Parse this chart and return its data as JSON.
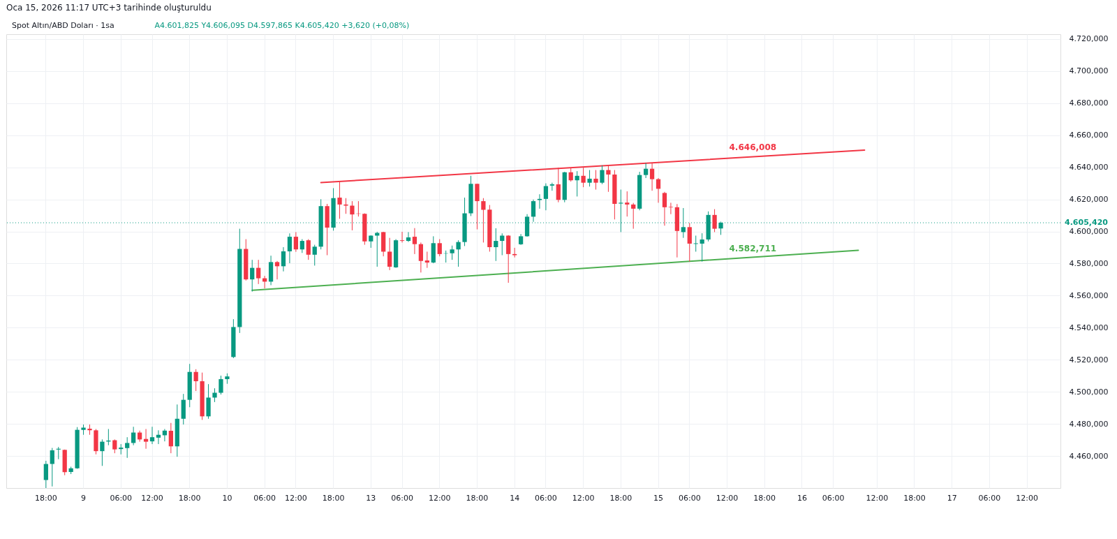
{
  "chart_data": {
    "type": "candlestick",
    "title": "Spot Altın/ABD Doları · 1sa",
    "subtitle": "A4.601,825 Y4.606,095 D4.597,865 K4.605,420 +3,620 (+0,08%)",
    "annotations": [
      "Oca 15, 2026 11:17 UTC+3 tarihinde oluşturuldu",
      {
        "text": "4.646,008",
        "y": 4646.008
      },
      {
        "text": "4.582,711",
        "y": 4582.711
      }
    ],
    "categories": [
      null,
      null,
      null,
      null,
      null,
      null,
      "18:00",
      null,
      null,
      null,
      null,
      null,
      "9",
      null,
      null,
      null,
      null,
      null,
      "06:00",
      null,
      null,
      null,
      null,
      "12:00",
      null,
      null,
      null,
      null,
      null,
      "18:00",
      null,
      null,
      null,
      null,
      null,
      "10",
      null,
      null,
      null,
      null,
      null,
      "06:00",
      null,
      null,
      null,
      null,
      "12:00",
      null,
      null,
      null,
      null,
      null,
      "18:00",
      null,
      null,
      null,
      null,
      null,
      "13",
      null,
      null,
      null,
      null,
      "06:00",
      null,
      null,
      null,
      null,
      null,
      "12:00",
      null,
      null,
      null,
      null,
      null,
      "18:00",
      null,
      null,
      null,
      null,
      null,
      "14",
      null,
      null,
      null,
      null,
      "06:00",
      null,
      null,
      null,
      null,
      null,
      "12:00",
      null,
      null,
      null,
      null,
      null,
      "18:00",
      null,
      null,
      null,
      null,
      null,
      "15",
      null,
      null,
      null,
      null,
      "06:00",
      null,
      null,
      null,
      null,
      null,
      "12:00",
      null,
      null,
      null,
      null,
      null,
      "18:00",
      null,
      null,
      null,
      null,
      null,
      "16",
      null,
      null,
      null,
      null,
      "06:00",
      null,
      null,
      null,
      null,
      null,
      null,
      "12:00",
      null,
      null,
      null,
      null,
      null,
      "18:00",
      null,
      null,
      null,
      null,
      null,
      "17",
      null,
      null,
      null,
      null,
      null,
      "06:00",
      null,
      null,
      null,
      null,
      null,
      "12:00",
      null,
      null,
      null,
      null,
      null
    ],
    "ohlc": [
      null,
      null,
      null,
      null,
      null,
      null,
      [
        4445,
        4457,
        4440,
        4455
      ],
      [
        4455,
        4465,
        4441,
        4463.5
      ],
      [
        4464,
        4465.6,
        4458,
        4464.5
      ],
      [
        4463.8,
        4464,
        4448,
        4449.9
      ],
      [
        4450,
        4453.3,
        4448.7,
        4452.3
      ],
      [
        4452.3,
        4478,
        4452,
        4476.3
      ],
      [
        4476.3,
        4479.6,
        4473.2,
        4477.7
      ],
      [
        4477,
        4479.6,
        4473.2,
        4476
      ],
      [
        4476,
        4476.8,
        4461,
        4463
      ],
      [
        4463,
        4470.3,
        4453.8,
        4468.9
      ],
      [
        4469,
        4476.8,
        4466.7,
        4469.6
      ],
      [
        4469.8,
        4470.3,
        4461.7,
        4464.1
      ],
      [
        4464.3,
        4467.4,
        4461,
        4465.2
      ],
      [
        4464.9,
        4471.7,
        4458.8,
        4468.1
      ],
      [
        4468.1,
        4478.2,
        4466.7,
        4474.6
      ],
      [
        4474.6,
        4475.8,
        4468.9,
        4470.3
      ],
      [
        4470.6,
        4476.8,
        4464.5,
        4468.9
      ],
      [
        4469.1,
        4478.2,
        4467.4,
        4471.7
      ],
      [
        4471.4,
        4476,
        4467.4,
        4473.2
      ],
      [
        4472.9,
        4476.8,
        4469.1,
        4475.8
      ],
      [
        4475.7,
        4480.6,
        4461.7,
        4466
      ],
      [
        4466,
        4492.1,
        4459.5,
        4483.2
      ],
      [
        4483.2,
        4498.7,
        4479.6,
        4495
      ],
      [
        4495,
        4517.4,
        4490.4,
        4512.4
      ],
      [
        4512.4,
        4514.1,
        4500.5,
        4506.6
      ],
      [
        4506.6,
        4512,
        4482.5,
        4484.7
      ],
      [
        4484.7,
        4504.8,
        4483.2,
        4496.4
      ],
      [
        4496.4,
        4502.2,
        4493.6,
        4499.4
      ],
      [
        4499.4,
        4510.1,
        4498.3,
        4507.9
      ],
      [
        4507.9,
        4511.5,
        4505,
        4509.6
      ],
      [
        4521.7,
        4545.3,
        4521,
        4540.4
      ],
      [
        4540.4,
        4601.7,
        4536.7,
        4589.1
      ],
      [
        4589.1,
        4595.2,
        4569.4,
        4570.1
      ],
      [
        4570.1,
        4582.3,
        4562.5,
        4577.3
      ],
      [
        4577.3,
        4582.3,
        4567.2,
        4570.8
      ],
      [
        4570.8,
        4572.3,
        4564.5,
        4568.7
      ],
      [
        4568.7,
        4584.9,
        4566.5,
        4580.9
      ],
      [
        4580.9,
        4581.6,
        4570.1,
        4578.3
      ],
      [
        4578.3,
        4590.2,
        4575.1,
        4587.6
      ],
      [
        4587.6,
        4598.8,
        4580.2,
        4596.7
      ],
      [
        4596.7,
        4599.6,
        4587.3,
        4588.8
      ],
      [
        4588.8,
        4595.2,
        4586.6,
        4594.1
      ],
      [
        4594.5,
        4595.2,
        4582.3,
        4585.5
      ],
      [
        4585.5,
        4591.7,
        4578.7,
        4590.5
      ],
      [
        4590.5,
        4620.1,
        4588.8,
        4615.8
      ],
      [
        4615.8,
        4617.2,
        4585.2,
        4602.4
      ],
      [
        4602.4,
        4627,
        4600.5,
        4620.8
      ],
      [
        4621.1,
        4631,
        4607.9,
        4616.8
      ],
      [
        4616.8,
        4620.8,
        4611,
        4616.1
      ],
      [
        4616.1,
        4618.9,
        4600.7,
        4610.6
      ],
      [
        4611.2,
        4618.9,
        4609.3,
        4611
      ],
      [
        4611,
        4611.3,
        4591.7,
        4593.8
      ],
      [
        4593.8,
        4597.6,
        4589.8,
        4597.4
      ],
      [
        4597.4,
        4599.8,
        4578,
        4599.1
      ],
      [
        4599.6,
        4599.8,
        4584.5,
        4587.4
      ],
      [
        4587.4,
        4596,
        4575.9,
        4578
      ],
      [
        4577.6,
        4595.2,
        4577.3,
        4594.5
      ],
      [
        4594.5,
        4599.8,
        4593.1,
        4594.1
      ],
      [
        4594.1,
        4599.6,
        4593.5,
        4596.3
      ],
      [
        4596.7,
        4602.1,
        4585.9,
        4592.1
      ],
      [
        4592.1,
        4593.1,
        4574.4,
        4581.6
      ],
      [
        4581.9,
        4587.4,
        4577.3,
        4580.6
      ],
      [
        4580.6,
        4597,
        4580.2,
        4592.7
      ],
      [
        4592.7,
        4595.2,
        4584.5,
        4585.9
      ],
      [
        4586.2,
        4588.1,
        4580.6,
        4586.4
      ],
      [
        4586.4,
        4591.2,
        4582.3,
        4588.8
      ],
      [
        4588.8,
        4594.5,
        4578,
        4593.4
      ],
      [
        4593.4,
        4621.1,
        4590.9,
        4611.3
      ],
      [
        4611.3,
        4634.7,
        4609.6,
        4629.7
      ],
      [
        4629.7,
        4629.7,
        4601.3,
        4618.9
      ],
      [
        4618.9,
        4620.8,
        4593.1,
        4613.5
      ],
      [
        4613.6,
        4616.5,
        4587.4,
        4590.2
      ],
      [
        4590.2,
        4602,
        4581.6,
        4594.1
      ],
      [
        4594.1,
        4598.8,
        4585.2,
        4597.4
      ],
      [
        4597.4,
        4597.7,
        4568,
        4585.9
      ],
      [
        4585.9,
        4589.8,
        4583.8,
        4585.2
      ],
      [
        4592,
        4598.4,
        4591.6,
        4597
      ],
      [
        4597,
        4610.8,
        4596.7,
        4609.2
      ],
      [
        4609.2,
        4619.9,
        4606,
        4618.9
      ],
      [
        4619.6,
        4623.2,
        4614.2,
        4620.3
      ],
      [
        4620.3,
        4630,
        4613.2,
        4628.3
      ],
      [
        4628.6,
        4630.4,
        4625.4,
        4629.4
      ],
      [
        4629.4,
        4639.8,
        4618.2,
        4619.7
      ],
      [
        4619.7,
        4637.2,
        4618.2,
        4636.9
      ],
      [
        4636.9,
        4639.8,
        4631.1,
        4631.9
      ],
      [
        4631.9,
        4637.6,
        4621.8,
        4634.7
      ],
      [
        4634.7,
        4639.8,
        4627.6,
        4630.4
      ],
      [
        4630.4,
        4638.3,
        4628,
        4632.9
      ],
      [
        4632.9,
        4638.3,
        4626.1,
        4630.4
      ],
      [
        4630.4,
        4641.2,
        4629.5,
        4638.3
      ],
      [
        4638.3,
        4641.2,
        4624.7,
        4635.5
      ],
      [
        4635.5,
        4638.3,
        4607.5,
        4617.2
      ],
      [
        4617.4,
        4626.1,
        4599.6,
        4617.9
      ],
      [
        4618,
        4625,
        4609.3,
        4616.8
      ],
      [
        4616.8,
        4617.8,
        4601.7,
        4614.2
      ],
      [
        4614.2,
        4637.2,
        4613.2,
        4635.2
      ],
      [
        4635.2,
        4642.6,
        4633.3,
        4639.1
      ],
      [
        4639.1,
        4642.6,
        4625.4,
        4632.6
      ],
      [
        4632.6,
        4633.3,
        4617.9,
        4626.6
      ],
      [
        4624,
        4624.7,
        4603.6,
        4615.1
      ],
      [
        4615.3,
        4617.9,
        4610.8,
        4615
      ],
      [
        4615.1,
        4617.1,
        4583.8,
        4600.3
      ],
      [
        4599.6,
        4614.6,
        4596,
        4602.7
      ],
      [
        4602.7,
        4605.3,
        4581.2,
        4592.4
      ],
      [
        4592.2,
        4597.4,
        4587.4,
        4592.6
      ],
      [
        4592.4,
        4598.9,
        4581.2,
        4595
      ],
      [
        4595,
        4612.5,
        4593.8,
        4610.3
      ],
      [
        4610.3,
        4613.9,
        4599.6,
        4601.7
      ],
      [
        4601.825,
        4606.095,
        4597.865,
        4605.42
      ],
      null,
      null,
      null,
      null,
      null,
      null,
      null,
      null,
      null,
      null,
      null,
      null,
      null,
      null,
      null,
      null,
      null,
      null,
      null,
      null,
      null,
      null,
      null,
      null,
      null,
      null,
      null,
      null,
      null,
      null,
      null,
      null,
      null,
      null,
      null,
      null,
      null,
      null,
      null,
      null,
      null,
      null,
      null,
      null,
      null,
      null,
      null,
      null,
      null,
      null,
      null,
      null,
      null,
      null
    ],
    "colors": [
      null,
      null,
      null,
      null,
      null,
      null,
      "#089981",
      "#089981",
      "#089981",
      "#f23645",
      "#089981",
      "#089981",
      "#089981",
      "#f23645",
      "#f23645",
      "#089981",
      "#089981",
      "#f23645",
      "#089981",
      "#089981",
      "#089981",
      "#f23645",
      "#f23645",
      "#089981",
      "#089981",
      "#089981",
      "#f23645",
      "#089981",
      "#089981",
      "#089981",
      "#f23645",
      "#f23645",
      "#089981",
      "#089981",
      "#089981",
      "#089981",
      "#089981",
      "#089981",
      "#f23645",
      "#089981",
      "#f23645",
      "#f23645",
      "#089981",
      "#f23645",
      "#089981",
      "#089981",
      "#f23645",
      "#089981",
      "#f23645",
      "#089981",
      "#089981",
      "#f23645",
      "#089981",
      "#f23645",
      "#f23645",
      "#f23645",
      "#f23645",
      "#f23645",
      "#089981",
      "#089981",
      "#f23645",
      "#f23645",
      "#089981",
      "#f23645",
      "#089981",
      "#f23645",
      "#f23645",
      "#f23645",
      "#089981",
      "#f23645",
      "#089981",
      "#089981",
      "#089981",
      "#089981",
      "#089981",
      "#f23645",
      "#f23645",
      "#f23645",
      "#089981",
      "#089981",
      "#f23645",
      "#f23645",
      "#089981",
      "#089981",
      "#089981",
      "#089981",
      "#089981",
      "#089981",
      "#f23645",
      "#089981",
      "#f23645",
      "#089981",
      "#f23645",
      "#089981",
      "#f23645",
      "#089981",
      "#f23645",
      "#f23645",
      "#089981",
      "#f23645",
      "#f23645",
      "#089981",
      "#089981",
      "#f23645",
      "#f23645",
      "#f23645",
      "#f23645",
      "#f23645",
      "#089981",
      "#f23645",
      "#089981",
      "#089981",
      "#089981",
      "#f23645",
      "#089981",
      null,
      null,
      null,
      null,
      null,
      null,
      null,
      null,
      null,
      null,
      null,
      null,
      null,
      null,
      null,
      null,
      null,
      null,
      null,
      null,
      null,
      null,
      null,
      null,
      null,
      null,
      null,
      null,
      null,
      null,
      null,
      null,
      null,
      null,
      null,
      null,
      null,
      null,
      null,
      null,
      null,
      null,
      null,
      null,
      null,
      null,
      null,
      null,
      null,
      null,
      null,
      null,
      null,
      null
    ],
    "series": [
      {
        "type": "line",
        "color": "#f23645",
        "values": [
          null,
          null,
          null,
          null,
          null,
          null,
          null,
          null,
          null,
          null,
          null,
          null,
          null,
          null,
          null,
          null,
          null,
          null,
          null,
          null,
          null,
          null,
          null,
          null,
          null,
          null,
          null,
          null,
          null,
          null,
          null,
          null,
          null,
          null,
          null,
          null,
          null,
          null,
          null,
          null,
          null,
          null,
          null,
          null,
          null,
          null,
          null,
          null,
          null,
          null,
          4630.5,
          null,
          null,
          null,
          null,
          null,
          null,
          null,
          null,
          null,
          null,
          null,
          null,
          null,
          null,
          null,
          null,
          null,
          null,
          null,
          null,
          null,
          null,
          null,
          null,
          null,
          null,
          null,
          null,
          null,
          null,
          null,
          null,
          null,
          null,
          null,
          null,
          null,
          null,
          null,
          null,
          null,
          null,
          null,
          null,
          null,
          null,
          null,
          null,
          null,
          null,
          null,
          null,
          null,
          null,
          null,
          null,
          null,
          null,
          null,
          null,
          null,
          null,
          null,
          null,
          null,
          null,
          null,
          null,
          null,
          null,
          null,
          null,
          null,
          null,
          null,
          null,
          null,
          null,
          null,
          null,
          null,
          null,
          null,
          null,
          null,
          null,
          4650.7,
          null,
          null,
          null,
          null,
          null,
          null,
          null,
          null,
          null,
          null,
          null,
          null,
          null,
          null,
          null,
          null,
          null,
          null,
          null,
          null,
          null,
          null,
          null,
          null,
          null,
          null,
          null,
          null,
          null,
          null,
          null
        ]
      },
      {
        "type": "line",
        "color": "#4caf50",
        "values": [
          null,
          null,
          null,
          null,
          null,
          null,
          null,
          null,
          null,
          null,
          null,
          null,
          null,
          null,
          null,
          null,
          null,
          null,
          null,
          null,
          null,
          null,
          null,
          null,
          null,
          null,
          null,
          null,
          null,
          null,
          null,
          null,
          null,
          null,
          null,
          null,
          null,
          null,
          null,
          4563.3,
          null,
          null,
          null,
          null,
          null,
          null,
          null,
          null,
          null,
          null,
          null,
          null,
          null,
          null,
          null,
          null,
          null,
          null,
          null,
          null,
          null,
          null,
          null,
          null,
          null,
          null,
          null,
          null,
          null,
          null,
          null,
          null,
          null,
          null,
          null,
          null,
          null,
          null,
          null,
          null,
          null,
          null,
          null,
          null,
          null,
          null,
          null,
          null,
          null,
          null,
          null,
          null,
          null,
          null,
          null,
          null,
          null,
          null,
          null,
          null,
          null,
          null,
          null,
          null,
          null,
          null,
          null,
          null,
          null,
          null,
          null,
          null,
          null,
          null,
          null,
          null,
          null,
          null,
          null,
          null,
          null,
          null,
          null,
          null,
          null,
          null,
          null,
          null,
          null,
          null,
          null,
          null,
          null,
          null,
          null,
          null,
          4588.3,
          null,
          null,
          null,
          null,
          null,
          null,
          null,
          null,
          null,
          null,
          null,
          null,
          null,
          null,
          null,
          null,
          null,
          null,
          null,
          null,
          null,
          null,
          null,
          null,
          null,
          null,
          null,
          null,
          null,
          null,
          null,
          null
        ]
      }
    ],
    "ylim": [
      4440,
      4723
    ],
    "yticks": [
      {
        "value": 4460,
        "label": "4.460,000"
      },
      {
        "value": 4480,
        "label": "4.480,000"
      },
      {
        "value": 4500,
        "label": "4.500,000"
      },
      {
        "value": 4520,
        "label": "4.520,000"
      },
      {
        "value": 4540,
        "label": "4.540,000"
      },
      {
        "value": 4560,
        "label": "4.560,000"
      },
      {
        "value": 4580,
        "label": "4.580,000"
      },
      {
        "value": 4600,
        "label": "4.600,000"
      },
      {
        "value": 4620,
        "label": "4.620,000"
      },
      {
        "value": 4640,
        "label": "4.640,000"
      },
      {
        "value": 4660,
        "label": "4.660,000"
      },
      {
        "value": 4680,
        "label": "4.680,000"
      },
      {
        "value": 4700,
        "label": "4.700,000"
      },
      {
        "value": 4720,
        "label": "4.720,000"
      }
    ],
    "ref_lines": [
      {
        "axis": "y",
        "value": 4605.42,
        "label": "4.605,420",
        "color": "#089981",
        "line_style": "dotted"
      }
    ],
    "grid": true
  }
}
